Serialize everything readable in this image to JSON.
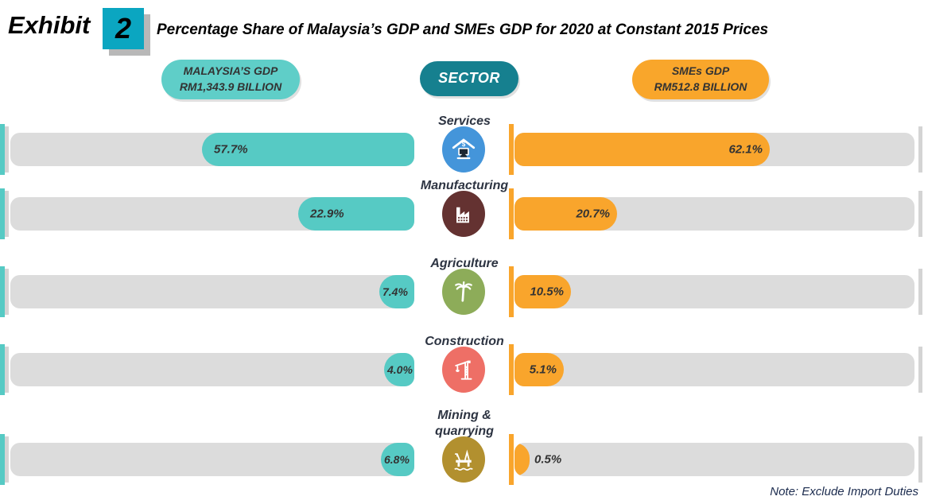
{
  "header": {
    "exhibit_label": "Exhibit",
    "exhibit_number": "2",
    "title": "Percentage Share of Malaysia’s GDP and SMEs GDP for 2020 at Constant 2015 Prices"
  },
  "legend": {
    "left_pill_line1": "MALAYSIA’S GDP",
    "left_pill_line2": "RM1,343.9 BILLION",
    "center_pill": "SECTOR",
    "right_pill_line1": "SMEs GDP",
    "right_pill_line2": "RM512.8 BILLION"
  },
  "note": "Note: Exclude Import Duties",
  "colors": {
    "teal_bar": "#56CAC4",
    "orange_bar": "#F9A52C",
    "track_gray": "#DCDCDC",
    "exhibit_box": "#0BA6C1",
    "sector_pill": "#16808F",
    "left_pill": "#5FCEC8",
    "right_pill": "#F9A62B"
  },
  "chart_data": {
    "type": "bar",
    "variant": "butterfly",
    "title": "Percentage Share of Malaysia’s GDP and SMEs GDP for 2020 at Constant 2015 Prices",
    "categories": [
      "Services",
      "Manufacturing",
      "Agriculture",
      "Construction",
      "Mining & quarrying"
    ],
    "series": [
      {
        "name": "Malaysia’s GDP (RM1,343.9 billion)",
        "unit": "%",
        "values": [
          57.7,
          22.9,
          7.4,
          4.0,
          6.8
        ]
      },
      {
        "name": "SMEs GDP (RM512.8 billion)",
        "unit": "%",
        "values": [
          62.1,
          20.7,
          10.5,
          5.1,
          0.5
        ]
      }
    ],
    "legend_position": "top",
    "grid": false,
    "rows": [
      {
        "sector": "Services",
        "left_label": "57.7%",
        "right_label": "62.1%",
        "left_width": 267,
        "right_width": 321,
        "icon": "services-icon",
        "icon_color": "#4495DA"
      },
      {
        "sector": "Manufacturing",
        "left_label": "22.9%",
        "right_label": "20.7%",
        "left_width": 146,
        "right_width": 129,
        "icon": "factory-icon",
        "icon_color": "#643231"
      },
      {
        "sector": "Agriculture",
        "left_label": "7.4%",
        "right_label": "10.5%",
        "left_width": 44,
        "right_width": 71,
        "icon": "palm-tree-icon",
        "icon_color": "#8DAC59"
      },
      {
        "sector": "Construction",
        "left_label": "4.0%",
        "right_label": "5.1%",
        "left_width": 38,
        "right_width": 62,
        "icon": "crane-icon",
        "icon_color": "#EE6F66"
      },
      {
        "sector": "Mining & quarrying",
        "left_label": "6.8%",
        "right_label": "0.5%",
        "left_width": 42,
        "right_width": 19,
        "icon": "oil-rig-icon",
        "icon_color": "#B2902F"
      }
    ]
  }
}
